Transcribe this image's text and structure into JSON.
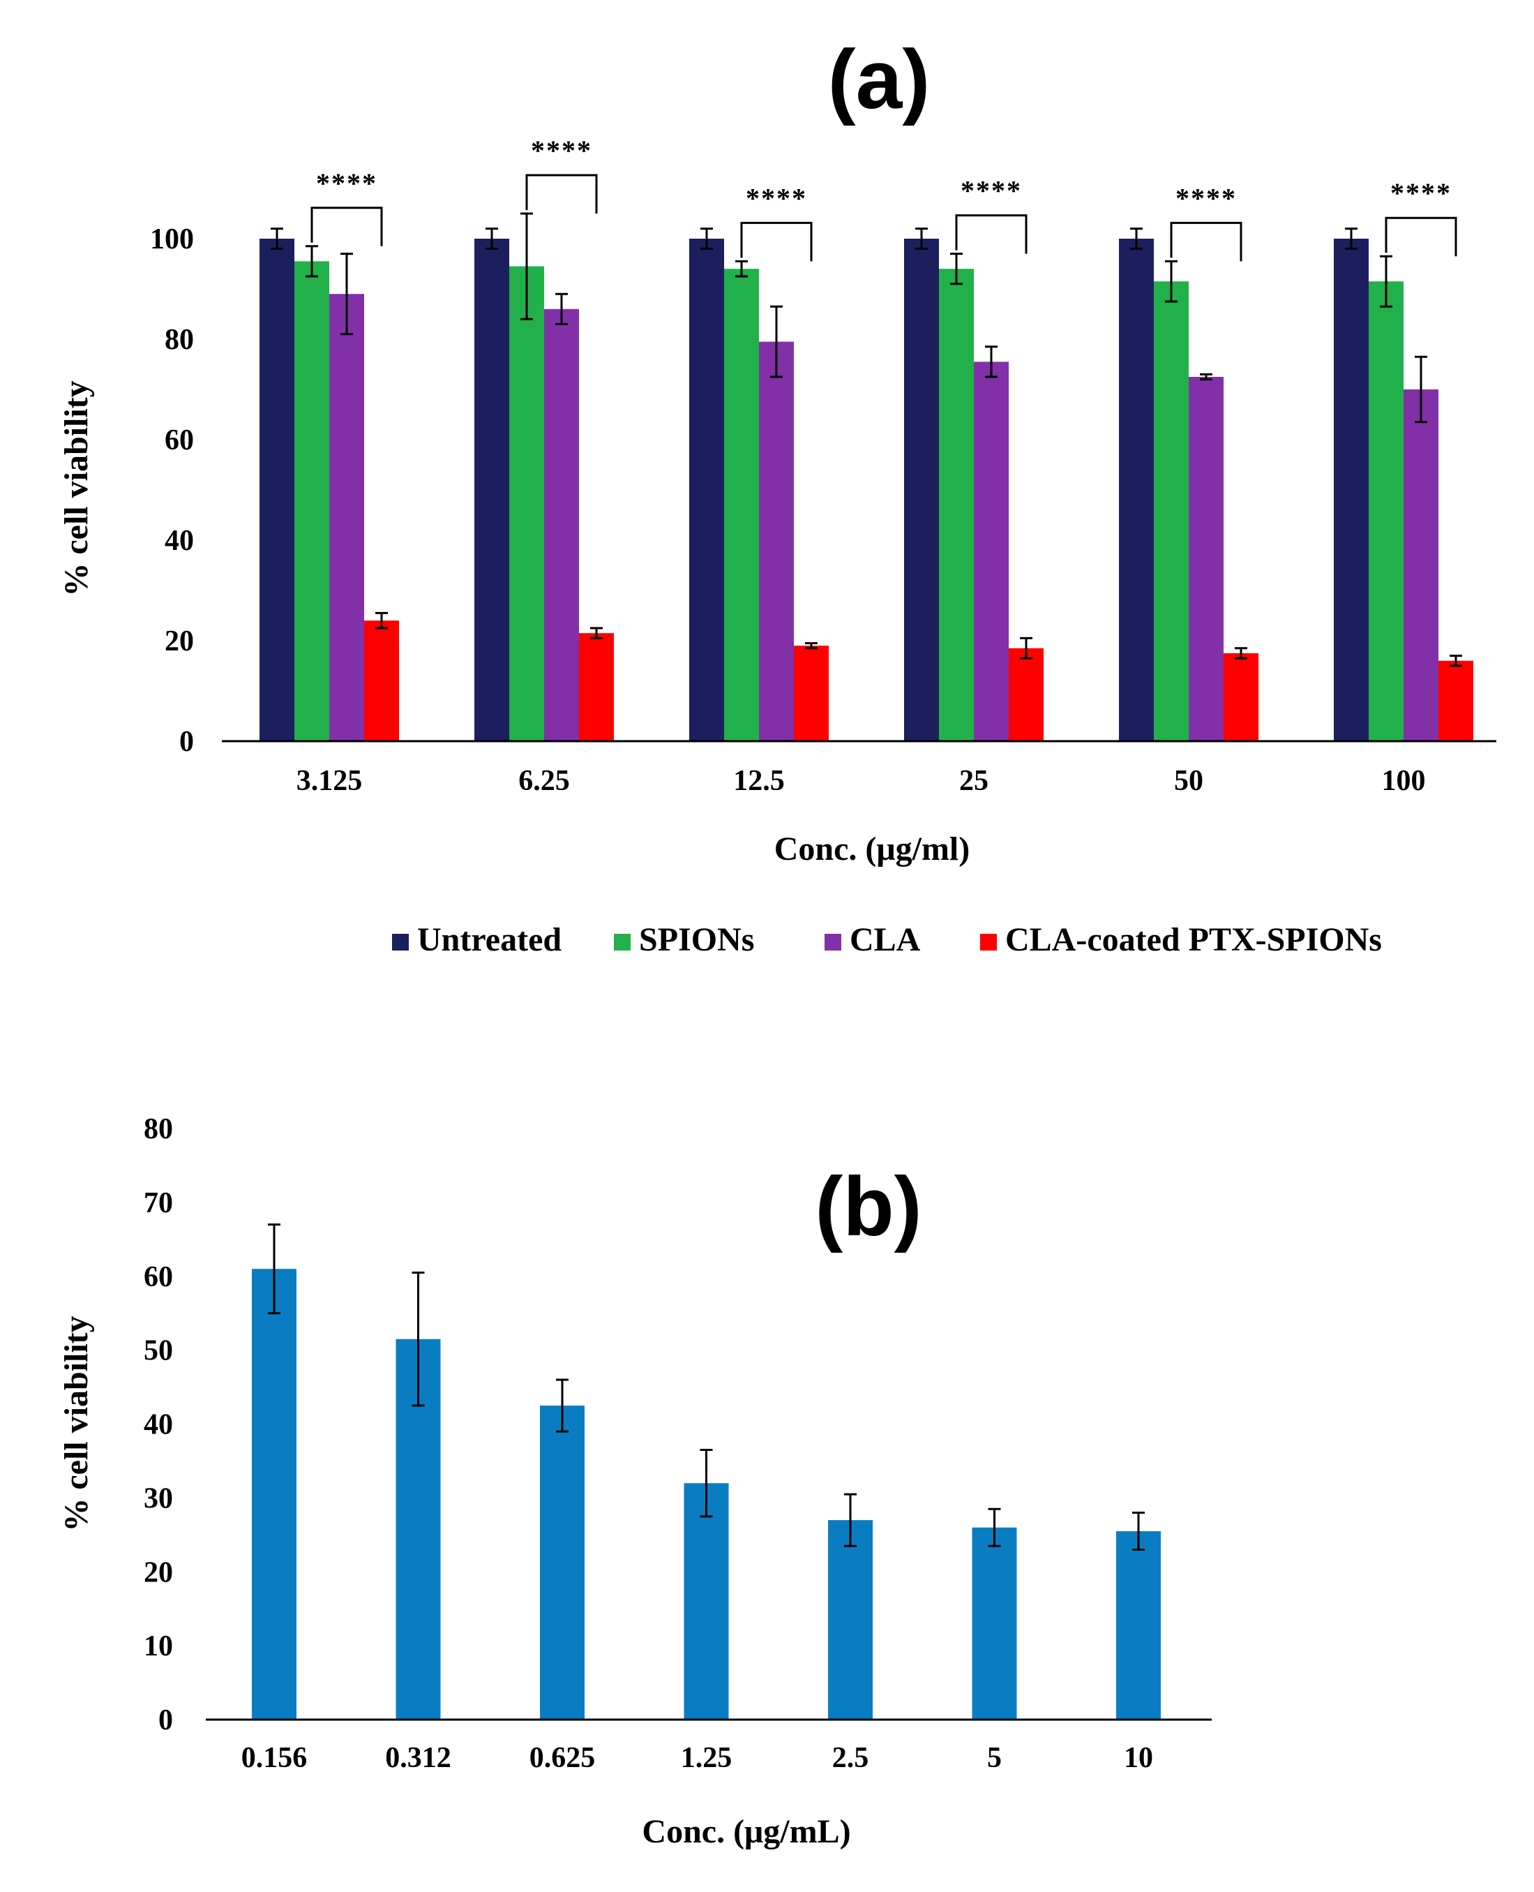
{
  "chart_data": [
    {
      "panel": "(a)",
      "type": "bar",
      "title": "",
      "xlabel": "Conc. (μg/ml)",
      "ylabel": "% cell viability",
      "ylim": [
        0,
        100
      ],
      "yticks": [
        0,
        20,
        40,
        60,
        80,
        100
      ],
      "categories": [
        "3.125",
        "6.25",
        "12.5",
        "25",
        "50",
        "100"
      ],
      "legend_position": "bottom",
      "significance": [
        "****",
        "****",
        "****",
        "****",
        "****",
        "****"
      ],
      "series": [
        {
          "name": "Untreated",
          "color": "#1b1f5e",
          "values": [
            100,
            100,
            100,
            100,
            100,
            100
          ],
          "errors": [
            2,
            2,
            2,
            2,
            2,
            2
          ]
        },
        {
          "name": "SPIONs",
          "color": "#22b04b",
          "values": [
            95.5,
            94.5,
            94,
            94,
            91.5,
            91.5
          ],
          "errors": [
            3,
            10.5,
            1.5,
            3,
            4,
            5
          ]
        },
        {
          "name": "CLA",
          "color": "#8230a8",
          "values": [
            89,
            86,
            79.5,
            75.5,
            72.5,
            70
          ],
          "errors": [
            8,
            3,
            7,
            3,
            0.5,
            6.5
          ]
        },
        {
          "name": "CLA-coated PTX-SPIONs",
          "color": "#ff0000",
          "values": [
            24,
            21.5,
            19,
            18.5,
            17.5,
            16
          ],
          "errors": [
            1.5,
            1,
            0.5,
            2,
            1,
            1
          ]
        }
      ]
    },
    {
      "panel": "(b)",
      "type": "bar",
      "title": "",
      "xlabel": "Conc. (μg/mL)",
      "ylabel": "% cell viability",
      "ylim": [
        0,
        80
      ],
      "yticks": [
        0,
        10,
        20,
        30,
        40,
        50,
        60,
        70,
        80
      ],
      "categories": [
        "0.156",
        "0.312",
        "0.625",
        "1.25",
        "2.5",
        "5",
        "10"
      ],
      "series": [
        {
          "name": "",
          "color": "#0a7dc2",
          "values": [
            61,
            51.5,
            42.5,
            32,
            27,
            26,
            25.5
          ],
          "errors": [
            6,
            9,
            3.5,
            4.5,
            3.5,
            2.5,
            2.5
          ]
        }
      ]
    }
  ]
}
